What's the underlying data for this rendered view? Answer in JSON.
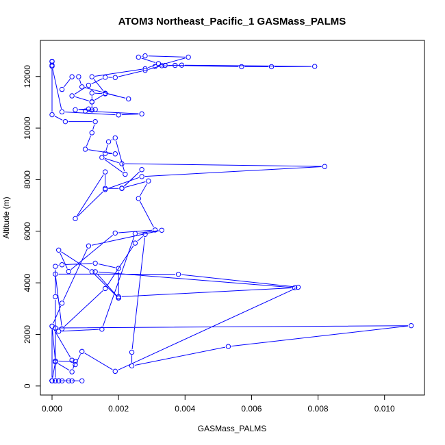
{
  "chart_data": {
    "type": "line",
    "title": "ATOM3 Northeast_Pacific_1 GASMass_PALMS",
    "xlabel": "GASMass_PALMS",
    "ylabel": "Altitude (m)",
    "xlim": [
      -0.00035,
      0.0112
    ],
    "ylim": [
      -350,
      13400
    ],
    "xticks": [
      0,
      0.002,
      0.004,
      0.006,
      0.008,
      0.01
    ],
    "xtick_labels": [
      "0.000",
      "0.002",
      "0.004",
      "0.006",
      "0.008",
      "0.010"
    ],
    "yticks": [
      0,
      2000,
      4000,
      6000,
      8000,
      10000,
      12000
    ],
    "ytick_labels": [
      "0",
      "2000",
      "4000",
      "6000",
      "8000",
      "10000",
      "12000"
    ],
    "grid": false,
    "legend": "none",
    "color": "#0000ff",
    "series": [
      {
        "x": [
          0.0,
          0.0,
          0.0001,
          0.0002,
          0.0003,
          0.0006,
          0.0009,
          0.0005,
          0.0002,
          0.0001,
          0.0,
          0.0,
          0.0001,
          0.0006,
          0.0007,
          0.0001,
          0.0,
          0.0006,
          0.0007,
          0.0009,
          0.0019,
          0.0074,
          0.0038,
          0.0001,
          0.0003,
          0.0016,
          0.0025,
          0.0028,
          0.0024,
          0.0024,
          0.0053,
          0.0108,
          0.0001,
          0.0002,
          0.0015,
          0.0025,
          0.0033,
          0.0011,
          0.0003,
          0.0,
          0.0,
          0.0001,
          0.0001,
          0.0001,
          0.0003,
          0.0013,
          0.002,
          0.002,
          0.0013,
          0.0073,
          0.002,
          0.002,
          0.0012,
          0.0002,
          0.0005,
          0.0019,
          0.0031,
          0.0026,
          0.0029,
          0.0021,
          0.0027,
          0.0021,
          0.0016,
          0.0016,
          0.0007,
          0.0016,
          0.0027,
          0.0082,
          0.0021,
          0.0015,
          0.0022,
          0.0019,
          0.0017,
          0.0016,
          0.0019,
          0.001,
          0.0012,
          0.0013,
          0.0004,
          0.0,
          0.0,
          0.0,
          0.0,
          0.0,
          0.0,
          0.0003,
          0.002,
          0.0027,
          0.001,
          0.0013,
          0.0011,
          0.0007,
          0.0012,
          0.0012,
          0.0012,
          0.0016,
          0.0012,
          0.0006,
          0.0011,
          0.0016,
          0.0019,
          0.0028,
          0.0033,
          0.0034,
          0.0039,
          0.0079,
          0.0066,
          0.0057,
          0.0037,
          0.0031,
          0.0041,
          0.0028,
          0.0026,
          0.0032,
          0.0028,
          0.0012,
          0.0016,
          0.0023,
          0.0009,
          0.0008,
          0.0006,
          0.0003
        ],
        "y": [
          200,
          200,
          200,
          200,
          200,
          200,
          200,
          200,
          200,
          200,
          200,
          200,
          930,
          550,
          950,
          970,
          2320,
          1000,
          830,
          1340,
          570,
          3830,
          4330,
          4340,
          2220,
          3780,
          5540,
          5880,
          1310,
          780,
          1530,
          2340,
          2250,
          2120,
          2200,
          5910,
          6040,
          5430,
          3210,
          2320,
          200,
          200,
          3460,
          4640,
          4700,
          4760,
          4560,
          3420,
          4430,
          3810,
          3460,
          3410,
          4430,
          5270,
          4440,
          5930,
          6050,
          7270,
          7950,
          7670,
          8390,
          7660,
          7660,
          8300,
          6490,
          7620,
          8120,
          8510,
          8620,
          8860,
          8210,
          9620,
          9470,
          9020,
          9000,
          9180,
          9820,
          10250,
          10250,
          10520,
          12440,
          12580,
          12590,
          12400,
          12400,
          10630,
          10510,
          10550,
          10660,
          10720,
          10740,
          10710,
          10700,
          11010,
          11360,
          11330,
          11020,
          11250,
          11660,
          11970,
          11960,
          12240,
          12420,
          12430,
          12440,
          12390,
          12380,
          12380,
          12430,
          12390,
          12750,
          12800,
          12750,
          12500,
          12300,
          11990,
          11350,
          11130,
          11600,
          11990,
          11990,
          11500
        ]
      }
    ]
  }
}
